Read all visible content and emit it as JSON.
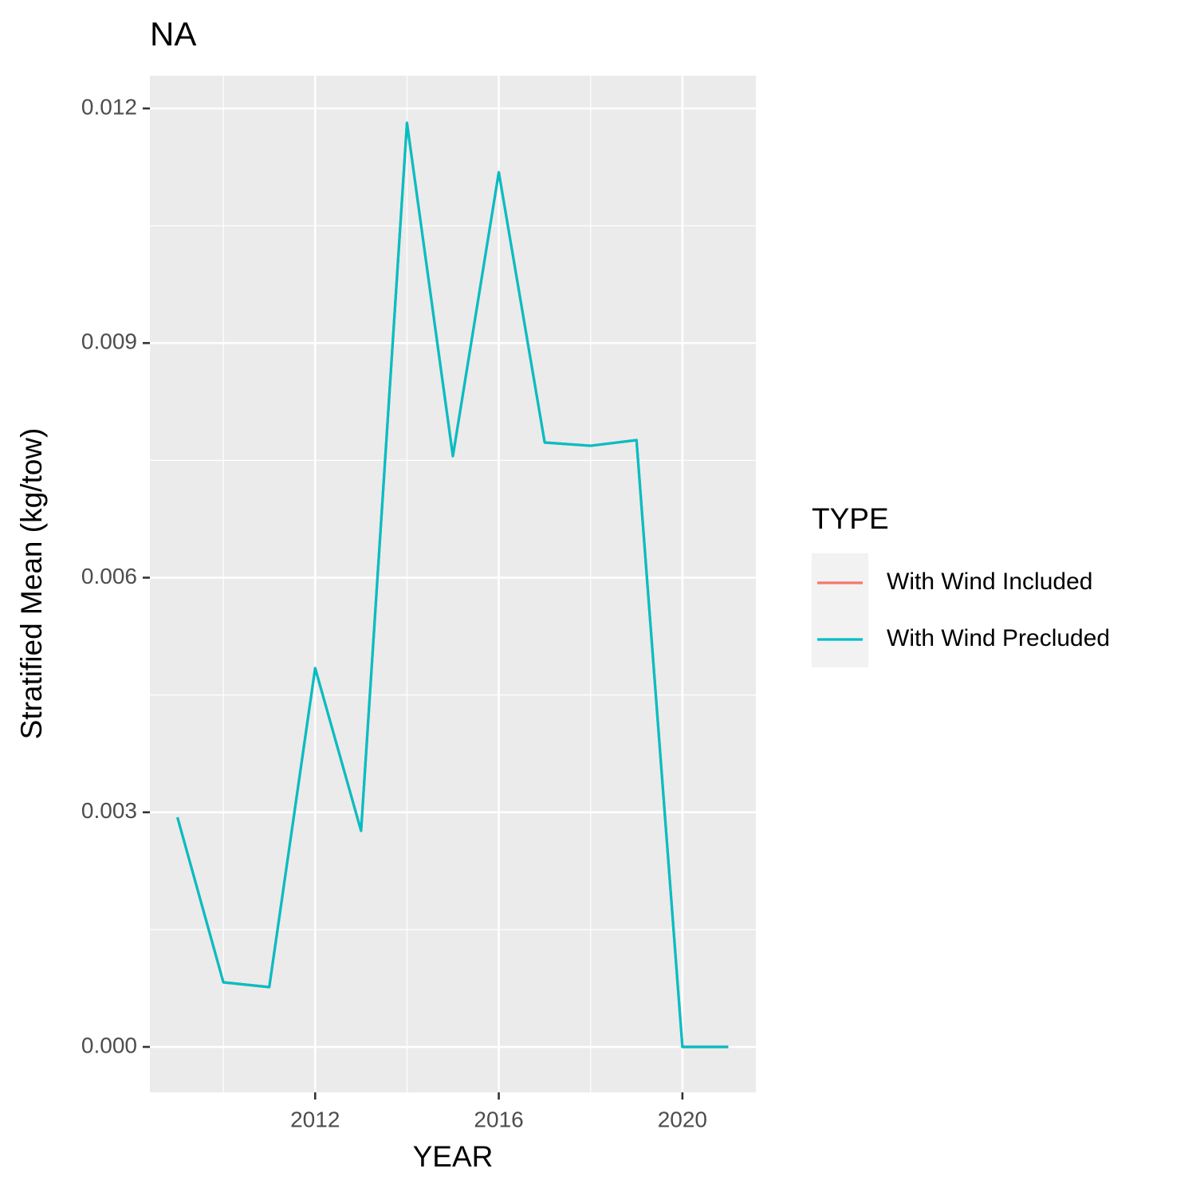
{
  "chart_data": {
    "type": "line",
    "title": "NA",
    "x_label": "YEAR",
    "y_label": "Stratified Mean (kg/tow)",
    "x": [
      2009,
      2010,
      2011,
      2012,
      2013,
      2014,
      2015,
      2016,
      2017,
      2018,
      2019,
      2020,
      2021
    ],
    "series": [
      {
        "name": "With Wind Included",
        "color": "#f8766d",
        "values": [
          0.002936,
          0.000826,
          0.000765,
          0.004843,
          0.002763,
          0.011816,
          0.007555,
          0.011184,
          0.007728,
          0.007687,
          0.007759,
          0,
          0
        ]
      },
      {
        "name": "With Wind Precluded",
        "color": "#00bfc4",
        "values": [
          0.002936,
          0.000826,
          0.000765,
          0.004843,
          0.002763,
          0.011816,
          0.007555,
          0.011184,
          0.007728,
          0.007687,
          0.007759,
          0,
          0
        ]
      }
    ],
    "xlim": [
      2008.4,
      2021.6
    ],
    "xticks": [
      2012,
      2016,
      2020
    ],
    "x_minor_ticks": [
      2010,
      2014,
      2018
    ],
    "ylim": [
      -0.000581,
      0.012418
    ],
    "yticks": [
      {
        "value": 0,
        "label": "0.000"
      },
      {
        "value": 0.003,
        "label": "0.003"
      },
      {
        "value": 0.006,
        "label": "0.006"
      },
      {
        "value": 0.009,
        "label": "0.009"
      },
      {
        "value": 0.012,
        "label": "0.012"
      }
    ],
    "y_minor_ticks": [
      0.0015,
      0.0045,
      0.0075,
      0.0105
    ],
    "grid": true,
    "legend_title": "TYPE",
    "legend_position": "right"
  }
}
